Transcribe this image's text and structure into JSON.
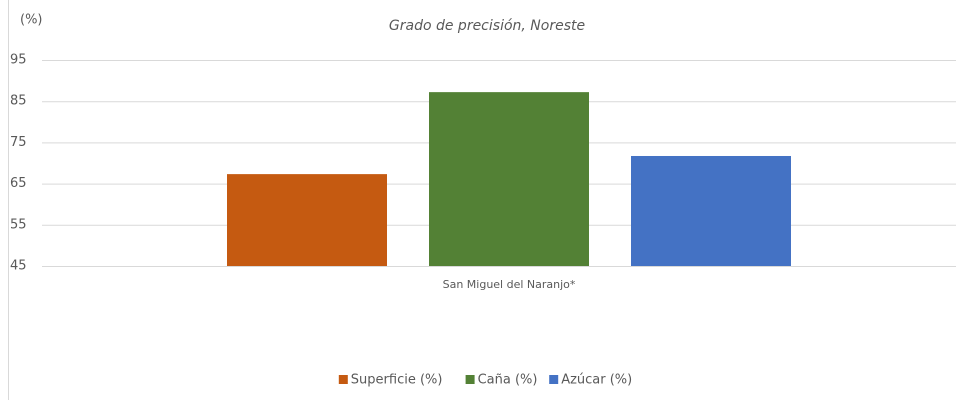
{
  "chart_data": {
    "type": "bar",
    "title": "Grado de precisión, Noreste",
    "y_label": "(%)",
    "categories": [
      "San Miguel del Naranjo*"
    ],
    "series": [
      {
        "name": "Superficie (%)",
        "color": "#c55a11",
        "values": [
          67.3
        ]
      },
      {
        "name": "Caña (%)",
        "color": "#538135",
        "values": [
          87.2
        ]
      },
      {
        "name": "Azúcar (%)",
        "color": "#4472c4",
        "values": [
          71.7
        ]
      }
    ],
    "ylim": [
      45,
      95
    ],
    "yticks": [
      45,
      55,
      65,
      75,
      85,
      95
    ],
    "grid": true,
    "legend": "bottom"
  }
}
